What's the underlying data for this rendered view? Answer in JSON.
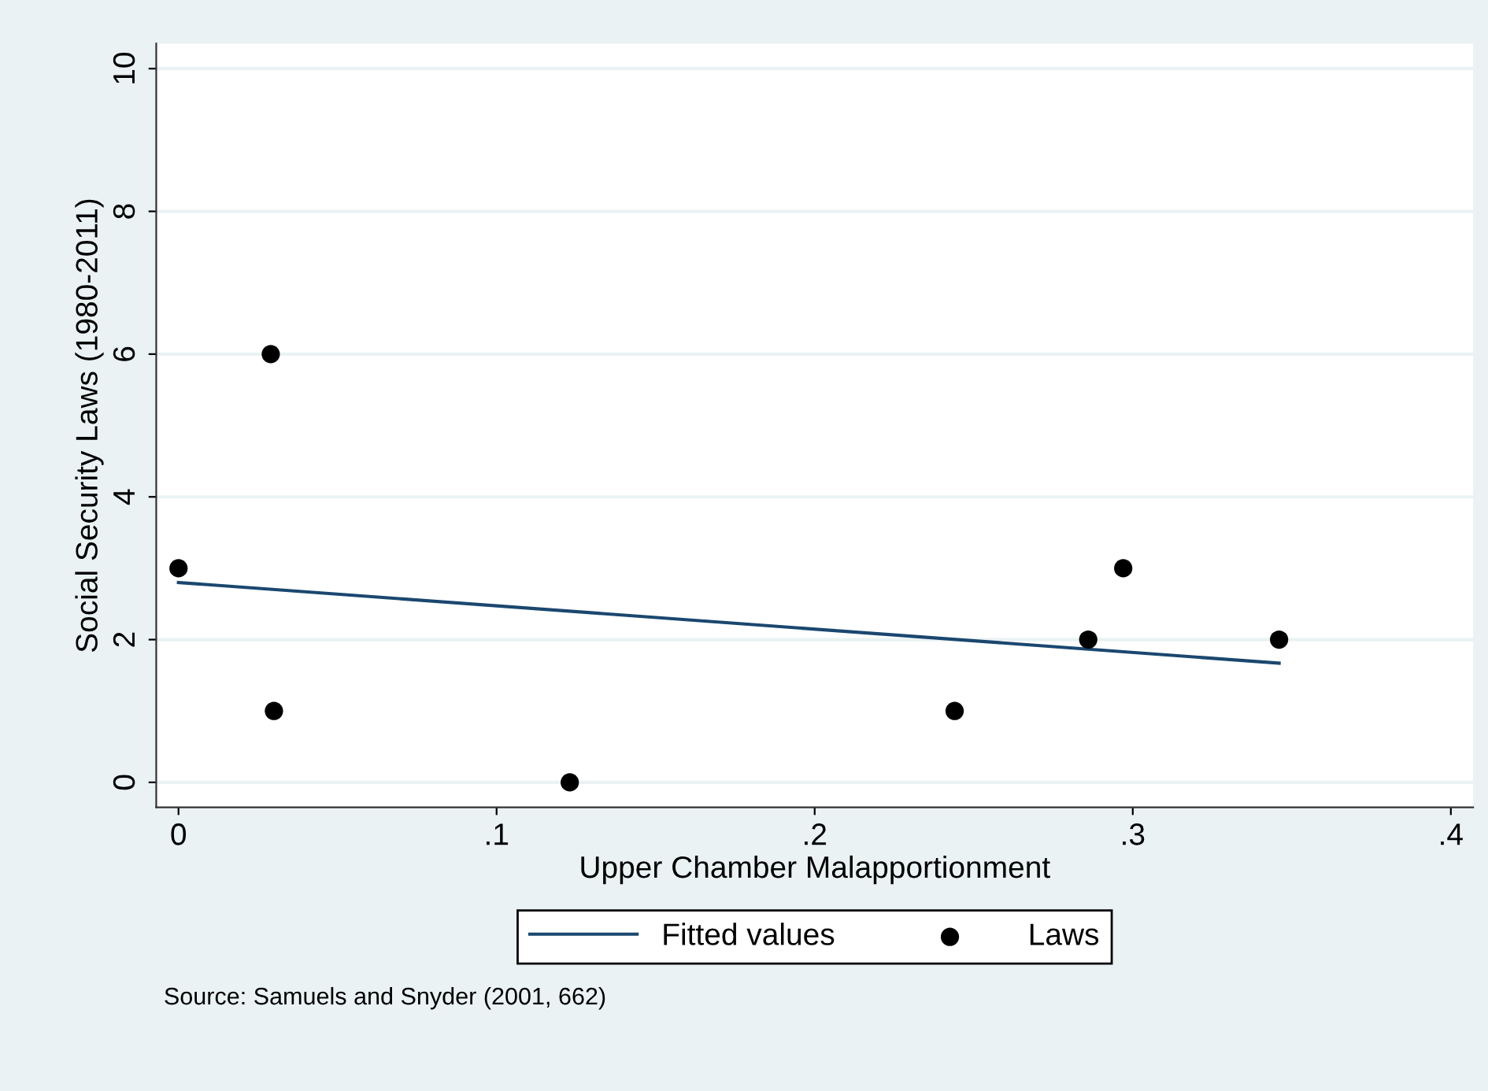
{
  "chart_data": {
    "type": "scatter",
    "xlabel": "Upper Chamber Malapportionment",
    "ylabel": "Social Security Laws (1980-2011)",
    "annotations": [
      "Source: Samuels and Snyder (2001, 662)"
    ],
    "series": [
      {
        "name": "Fitted values",
        "type": "line",
        "color": "#1a476f",
        "x": [
          0,
          0.346
        ],
        "values": [
          2.8,
          1.67
        ],
        "marker": "none"
      },
      {
        "name": "Laws",
        "color": "#000000",
        "marker": "circle",
        "x": [
          0,
          0.029,
          0.03,
          0.123,
          0.244,
          0.286,
          0.297,
          0.346
        ],
        "values": [
          3,
          6,
          1,
          0,
          1,
          2,
          3,
          2
        ]
      }
    ],
    "xlim": [
      -0.007,
      0.407
    ],
    "ylim": [
      -0.35,
      10.35
    ],
    "xticks": [
      0,
      {
        "value": 0.1,
        "label": ".1"
      },
      {
        "value": 0.2,
        "label": ".2"
      },
      {
        "value": 0.3,
        "label": ".3"
      },
      {
        "value": 0.4,
        "label": ".4"
      }
    ],
    "yticks": [
      0,
      2,
      4,
      6,
      8,
      10
    ],
    "grid": "y",
    "legend": "bottom"
  }
}
